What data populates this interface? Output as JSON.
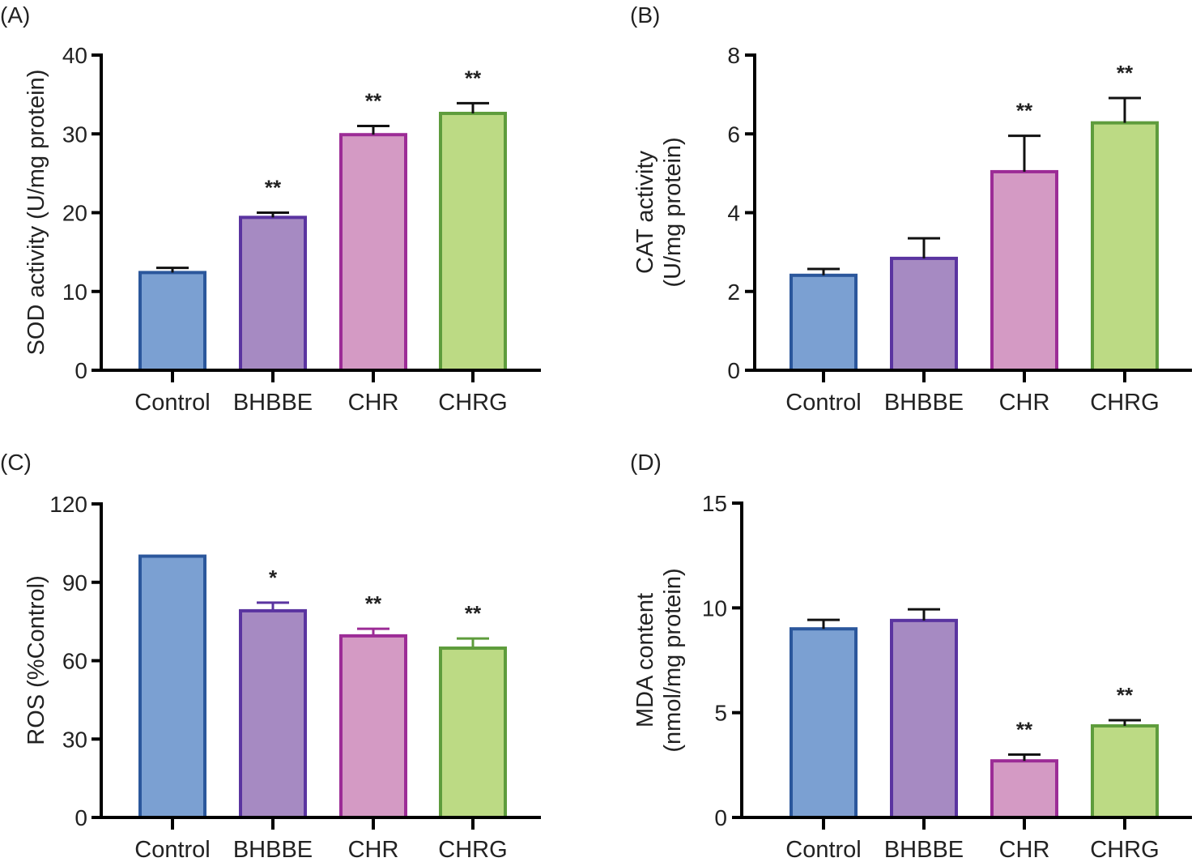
{
  "figure": {
    "panel_labels": [
      "(A)",
      "(B)",
      "(C)",
      "(D)"
    ]
  },
  "colors": {
    "fills": [
      "#7ba0d2",
      "#a68ac2",
      "#d49ac4",
      "#bcda84"
    ],
    "strokes": [
      "#2b579c",
      "#5a34a0",
      "#9c2c96",
      "#5e9c3c"
    ],
    "axis": "#000000",
    "text": "#222222"
  },
  "chart_data": [
    {
      "panel": "(A)",
      "type": "bar",
      "title": "",
      "categories": [
        "Control",
        "BHBBE",
        "CHR",
        "CHRG"
      ],
      "values": [
        12.4,
        19.4,
        29.9,
        32.6
      ],
      "errors": [
        0.6,
        0.6,
        1.1,
        1.3
      ],
      "significance": [
        "",
        "**",
        "**",
        "**"
      ],
      "xlabel": "",
      "ylabel": [
        "SOD activity (U/mg protein)"
      ],
      "ylim": [
        0,
        40
      ],
      "yticks": [
        0,
        10,
        20,
        30,
        40
      ],
      "grid": false
    },
    {
      "panel": "(B)",
      "type": "bar",
      "title": "",
      "categories": [
        "Control",
        "BHBBE",
        "CHR",
        "CHRG"
      ],
      "values": [
        2.41,
        2.84,
        5.04,
        6.28
      ],
      "errors": [
        0.16,
        0.51,
        0.91,
        0.63
      ],
      "significance": [
        "",
        "",
        "**",
        "**"
      ],
      "xlabel": "",
      "ylabel": [
        "CAT activity",
        "(U/mg protein)"
      ],
      "ylim": [
        0,
        8
      ],
      "yticks": [
        0,
        2,
        4,
        6,
        8
      ],
      "grid": false
    },
    {
      "panel": "(C)",
      "type": "bar",
      "title": "",
      "categories": [
        "Control",
        "BHBBE",
        "CHR",
        "CHRG"
      ],
      "values": [
        100,
        79.1,
        69.5,
        64.8
      ],
      "errors": [
        0,
        3.1,
        2.7,
        3.7
      ],
      "significance": [
        "",
        "*",
        "**",
        "**"
      ],
      "xlabel": "",
      "ylabel": [
        "ROS (%Control)"
      ],
      "ylim": [
        0,
        120
      ],
      "yticks": [
        0,
        30,
        60,
        90,
        120
      ],
      "grid": false
    },
    {
      "panel": "(D)",
      "type": "bar",
      "title": "",
      "categories": [
        "Control",
        "BHBBE",
        "CHR",
        "CHRG"
      ],
      "values": [
        9.0,
        9.4,
        2.7,
        4.37
      ],
      "errors": [
        0.43,
        0.53,
        0.3,
        0.27
      ],
      "significance": [
        "",
        "",
        "**",
        "**"
      ],
      "xlabel": "",
      "ylabel": [
        "MDA content",
        "(nmol/mg protein)"
      ],
      "ylim": [
        0,
        15
      ],
      "yticks": [
        0,
        5,
        10,
        15
      ],
      "grid": false
    }
  ]
}
